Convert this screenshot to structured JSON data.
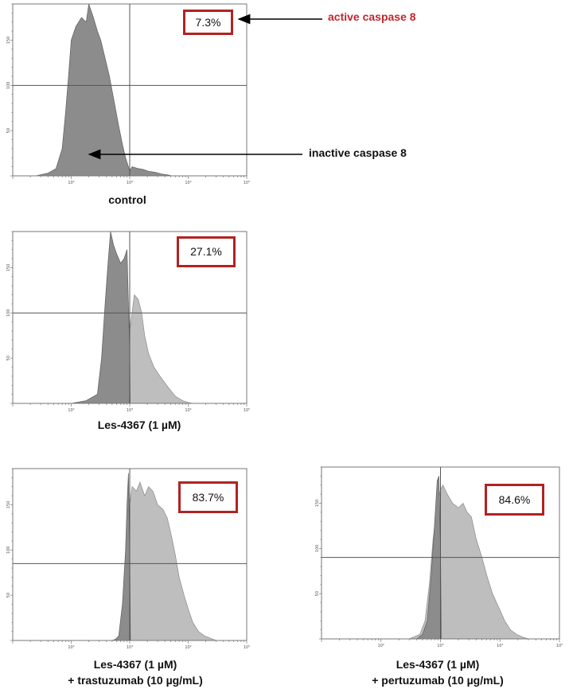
{
  "chart_data": [
    {
      "type": "area",
      "caption": "control",
      "percent_label": "7.3%",
      "x_scale": "log",
      "xlim": [
        10,
        100000
      ],
      "ylim": [
        0,
        190
      ],
      "x_ticks": [
        "10²",
        "10³",
        "10⁴",
        "10⁵"
      ],
      "y_ticks": [
        "50",
        "100",
        "150"
      ],
      "gate": {
        "x": 1000,
        "y": 100
      },
      "series": [
        {
          "shade": "dark",
          "points": [
            [
              25,
              0
            ],
            [
              40,
              3
            ],
            [
              55,
              8
            ],
            [
              70,
              30
            ],
            [
              80,
              70
            ],
            [
              90,
              110
            ],
            [
              100,
              150
            ],
            [
              120,
              165
            ],
            [
              150,
              175
            ],
            [
              180,
              170
            ],
            [
              200,
              190
            ],
            [
              240,
              175
            ],
            [
              280,
              160
            ],
            [
              320,
              150
            ],
            [
              380,
              130
            ],
            [
              450,
              110
            ],
            [
              550,
              80
            ],
            [
              650,
              55
            ],
            [
              750,
              35
            ],
            [
              850,
              20
            ],
            [
              950,
              10
            ],
            [
              1000,
              5
            ],
            [
              1100,
              10
            ],
            [
              1400,
              8
            ],
            [
              1700,
              7
            ],
            [
              2100,
              5
            ],
            [
              2700,
              4
            ],
            [
              3500,
              2
            ],
            [
              4500,
              1
            ],
            [
              5200,
              0
            ]
          ]
        }
      ]
    },
    {
      "type": "area",
      "caption": "Les-4367 (1 µM)",
      "percent_label": "27.1%",
      "x_scale": "log",
      "xlim": [
        10,
        100000
      ],
      "ylim": [
        0,
        190
      ],
      "x_ticks": [
        "10²",
        "10³",
        "10⁴",
        "10⁵"
      ],
      "y_ticks": [
        "50",
        "100",
        "150"
      ],
      "gate": {
        "x": 1000,
        "y": 100
      },
      "series": [
        {
          "shade": "light",
          "points": [
            [
              500,
              0
            ],
            [
              800,
              20
            ],
            [
              1000,
              80
            ],
            [
              1200,
              120
            ],
            [
              1400,
              115
            ],
            [
              1600,
              100
            ],
            [
              1800,
              75
            ],
            [
              2100,
              55
            ],
            [
              2600,
              40
            ],
            [
              3300,
              30
            ],
            [
              4500,
              18
            ],
            [
              6000,
              8
            ],
            [
              8000,
              3
            ],
            [
              10000,
              1
            ],
            [
              12000,
              0
            ]
          ]
        },
        {
          "shade": "dark",
          "points": [
            [
              100,
              0
            ],
            [
              180,
              3
            ],
            [
              280,
              10
            ],
            [
              330,
              50
            ],
            [
              380,
              110
            ],
            [
              420,
              150
            ],
            [
              470,
              190
            ],
            [
              530,
              175
            ],
            [
              600,
              165
            ],
            [
              700,
              155
            ],
            [
              800,
              160
            ],
            [
              900,
              170
            ],
            [
              950,
              110
            ],
            [
              1000,
              60
            ],
            [
              1020,
              0
            ]
          ]
        }
      ]
    },
    {
      "type": "area",
      "caption": "Les-4367 (1 µM)",
      "caption_line2": "+ trastuzumab (10 µg/mL)",
      "percent_label": "83.7%",
      "x_scale": "log",
      "xlim": [
        10,
        100000
      ],
      "ylim": [
        0,
        190
      ],
      "x_ticks": [
        "10²",
        "10³",
        "10⁴",
        "10⁵"
      ],
      "y_ticks": [
        "50",
        "100",
        "150"
      ],
      "gate": {
        "x": 1000,
        "y": 85
      },
      "series": [
        {
          "shade": "light",
          "points": [
            [
              500,
              0
            ],
            [
              650,
              3
            ],
            [
              750,
              8
            ],
            [
              850,
              30
            ],
            [
              1000,
              150
            ],
            [
              1100,
              170
            ],
            [
              1300,
              165
            ],
            [
              1500,
              175
            ],
            [
              1800,
              160
            ],
            [
              2100,
              170
            ],
            [
              2500,
              165
            ],
            [
              3000,
              150
            ],
            [
              3700,
              145
            ],
            [
              4400,
              135
            ],
            [
              5200,
              115
            ],
            [
              6000,
              95
            ],
            [
              7000,
              70
            ],
            [
              8500,
              50
            ],
            [
              10000,
              35
            ],
            [
              12000,
              20
            ],
            [
              15000,
              10
            ],
            [
              19000,
              5
            ],
            [
              25000,
              2
            ],
            [
              30000,
              0
            ]
          ]
        },
        {
          "shade": "dark",
          "points": [
            [
              550,
              0
            ],
            [
              650,
              5
            ],
            [
              750,
              40
            ],
            [
              850,
              100
            ],
            [
              900,
              150
            ],
            [
              950,
              185
            ],
            [
              1000,
              100
            ],
            [
              1030,
              0
            ]
          ]
        }
      ]
    },
    {
      "type": "area",
      "caption": "Les-4367 (1 µM)",
      "caption_line2": "+ pertuzumab (10 µg/mL)",
      "percent_label": "84.6%",
      "x_scale": "log",
      "xlim": [
        10,
        100000
      ],
      "ylim": [
        0,
        190
      ],
      "x_ticks": [
        "10²",
        "10³",
        "10⁴",
        "10⁵"
      ],
      "y_ticks": [
        "50",
        "100",
        "150"
      ],
      "gate": {
        "x": 1000,
        "y": 90
      },
      "series": [
        {
          "shade": "light",
          "points": [
            [
              300,
              0
            ],
            [
              450,
              5
            ],
            [
              550,
              20
            ],
            [
              650,
              60
            ],
            [
              750,
              110
            ],
            [
              850,
              140
            ],
            [
              1000,
              165
            ],
            [
              1100,
              170
            ],
            [
              1300,
              160
            ],
            [
              1600,
              150
            ],
            [
              2000,
              145
            ],
            [
              2400,
              150
            ],
            [
              2800,
              140
            ],
            [
              3300,
              135
            ],
            [
              4000,
              110
            ],
            [
              5000,
              90
            ],
            [
              6000,
              70
            ],
            [
              7500,
              50
            ],
            [
              9500,
              35
            ],
            [
              12000,
              20
            ],
            [
              15000,
              10
            ],
            [
              19000,
              5
            ],
            [
              24000,
              2
            ],
            [
              30000,
              0
            ]
          ]
        },
        {
          "shade": "dark",
          "points": [
            [
              400,
              0
            ],
            [
              500,
              5
            ],
            [
              600,
              20
            ],
            [
              700,
              70
            ],
            [
              800,
              130
            ],
            [
              880,
              175
            ],
            [
              940,
              180
            ],
            [
              1000,
              100
            ],
            [
              1030,
              0
            ]
          ]
        }
      ]
    }
  ],
  "annotations": {
    "active_label": "active caspase 8",
    "inactive_label": "inactive caspase 8",
    "active_color": "#c0272d"
  },
  "colors": {
    "dark_fill": "#8c8c8c",
    "light_fill": "#bebebe",
    "box_border": "#b22222"
  }
}
